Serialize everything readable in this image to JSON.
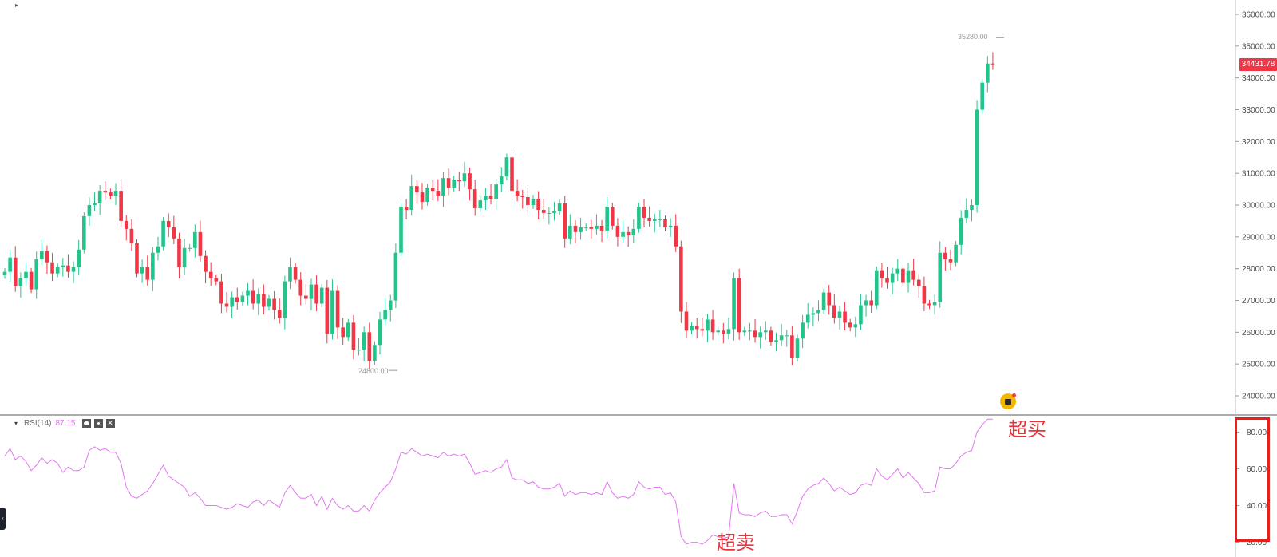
{
  "chart_data": [
    {
      "type": "candlestick",
      "title": "",
      "ylim": [
        23600,
        36400
      ],
      "y_ticks": [
        "24000.00",
        "25000.00",
        "26000.00",
        "27000.00",
        "28000.00",
        "29000.00",
        "30000.00",
        "31000.00",
        "32000.00",
        "33000.00",
        "34000.00",
        "35000.00",
        "36000.00"
      ],
      "last_price": "34431.78",
      "high_label": "35280.00",
      "low_label": "24800.00",
      "up_color": "#22c48a",
      "down_color": "#f23645",
      "close": [
        27900,
        28350,
        27450,
        27700,
        27900,
        27350,
        28300,
        28550,
        28200,
        27850,
        28050,
        28100,
        27900,
        28050,
        28600,
        29650,
        30000,
        30050,
        30450,
        30400,
        30300,
        30450,
        29500,
        29250,
        28800,
        27850,
        28050,
        27650,
        28500,
        28700,
        29500,
        29300,
        28950,
        28050,
        28650,
        28650,
        29150,
        28400,
        27900,
        27700,
        27600,
        26900,
        26800,
        27100,
        26950,
        27150,
        27300,
        26900,
        27200,
        26800,
        27050,
        26700,
        26450,
        27600,
        28050,
        27650,
        27150,
        27050,
        27500,
        26900,
        27400,
        25950,
        27300,
        26150,
        25850,
        26300,
        25450,
        25450,
        26000,
        25100,
        25600,
        26400,
        26700,
        27000,
        28500,
        29950,
        29850,
        30600,
        30400,
        30100,
        30550,
        30450,
        30300,
        30850,
        30550,
        30800,
        30750,
        31000,
        30500,
        29900,
        30150,
        30300,
        30200,
        30650,
        30900,
        31500,
        30450,
        30300,
        30250,
        30000,
        30200,
        29850,
        29750,
        29750,
        29800,
        30050,
        28950,
        29350,
        29150,
        29300,
        29300,
        29250,
        29350,
        29200,
        29950,
        29350,
        29000,
        29150,
        29050,
        29250,
        29950,
        29600,
        29500,
        29550,
        29550,
        29300,
        29350,
        28700,
        26650,
        26050,
        26200,
        26100,
        26050,
        26400,
        26000,
        26050,
        25950,
        26100,
        27700,
        26000,
        26050,
        26050,
        25850,
        26000,
        26050,
        25700,
        25750,
        25900,
        25900,
        25200,
        25800,
        26300,
        26550,
        26600,
        26700,
        27250,
        26850,
        26450,
        26650,
        26300,
        26150,
        26250,
        26850,
        27000,
        26850,
        27950,
        27700,
        27550,
        27850,
        28000,
        27550,
        27950,
        27650,
        27450,
        26900,
        26850,
        26950,
        28500,
        28300,
        28200,
        28750,
        29600,
        29850,
        30000,
        33000,
        33850,
        34450,
        34432
      ],
      "rsi": {
        "name": "RSI(14)",
        "value": "87.15",
        "color": "#e377f2",
        "ylim": [
          12,
          88
        ],
        "ticks": [
          "20.00",
          "40.00",
          "60.00",
          "80.00"
        ],
        "values": [
          67,
          71,
          65,
          67,
          64,
          59,
          62,
          66,
          63,
          65,
          63,
          58,
          61,
          59,
          59,
          61,
          70,
          72,
          70,
          71,
          69,
          69,
          63,
          50,
          45,
          44,
          46,
          48,
          52,
          57,
          62,
          56,
          54,
          52,
          50,
          45,
          47,
          44,
          40,
          40,
          40,
          39,
          38,
          39,
          41,
          40,
          39,
          42,
          43,
          40,
          43,
          41,
          39,
          47,
          51,
          47,
          44,
          44,
          46,
          40,
          45,
          38,
          44,
          40,
          38,
          40,
          37,
          37,
          40,
          37,
          43,
          47,
          50,
          53,
          60,
          69,
          68,
          71,
          69,
          67,
          68,
          67,
          66,
          69,
          67,
          68,
          67,
          68,
          63,
          57,
          58,
          59,
          58,
          60,
          61,
          65,
          55,
          54,
          54,
          52,
          53,
          50,
          49,
          49,
          50,
          52,
          45,
          48,
          46,
          47,
          47,
          46,
          47,
          46,
          53,
          47,
          44,
          45,
          44,
          46,
          53,
          50,
          49,
          50,
          50,
          46,
          47,
          42,
          23,
          19,
          20,
          20,
          19,
          21,
          24,
          23,
          22,
          23,
          52,
          36,
          35,
          35,
          34,
          36,
          37,
          34,
          34,
          35,
          35,
          30,
          37,
          45,
          49,
          51,
          52,
          55,
          52,
          48,
          50,
          48,
          46,
          47,
          51,
          52,
          51,
          60,
          56,
          54,
          57,
          60,
          55,
          58,
          55,
          52,
          47,
          47,
          48,
          61,
          60,
          60,
          63,
          67,
          69,
          70,
          80,
          84,
          87,
          87
        ]
      }
    }
  ],
  "annotations": {
    "overbought": "超买",
    "oversold": "超卖"
  }
}
